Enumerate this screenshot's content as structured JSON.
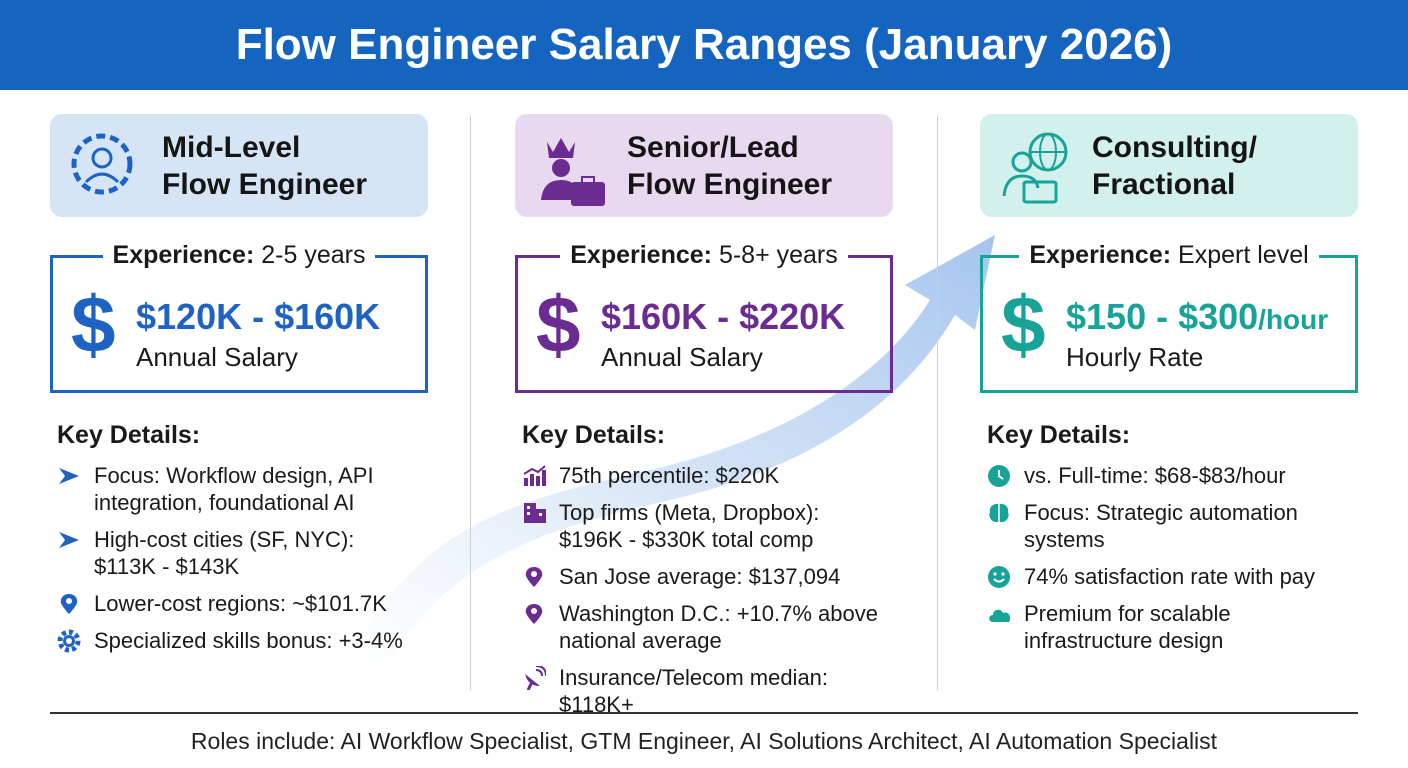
{
  "header": {
    "title": "Flow Engineer Salary Ranges (January 2026)"
  },
  "columns": [
    {
      "title": [
        "Mid-Level",
        "Flow Engineer"
      ],
      "experience_label": "Experience:",
      "experience": "2-5 years",
      "currency_symbol": "$",
      "salary": "$120K - $160K",
      "salary_unit": "Annual Salary",
      "details_heading": "Key Details:",
      "details": [
        [
          "Focus: Workflow design, API",
          "integration, foundational AI"
        ],
        [
          "High-cost cities (SF, NYC):",
          "$113K - $143K"
        ],
        [
          "Lower-cost regions: ~$101.7K"
        ],
        [
          "Specialized skills bonus: +3-4%"
        ]
      ]
    },
    {
      "title": [
        "Senior/Lead",
        "Flow Engineer"
      ],
      "experience_label": "Experience:",
      "experience": "5-8+ years",
      "currency_symbol": "$",
      "salary": "$160K - $220K",
      "salary_unit": "Annual Salary",
      "details_heading": "Key Details:",
      "details": [
        [
          "75th percentile: $220K"
        ],
        [
          "Top firms (Meta, Dropbox):",
          "$196K - $330K total comp"
        ],
        [
          "San Jose average: $137,094"
        ],
        [
          "Washington D.C.: +10.7% above",
          "national average"
        ],
        [
          "Insurance/Telecom median: $118K+"
        ]
      ]
    },
    {
      "title": [
        "Consulting/",
        "Fractional"
      ],
      "experience_label": "Experience:",
      "experience": "Expert level",
      "currency_symbol": "$",
      "salary": "$150 - $300",
      "salary_suffix": "/hour",
      "salary_unit": "Hourly Rate",
      "details_heading": "Key Details:",
      "details": [
        [
          "vs. Full-time: $68-$83/hour"
        ],
        [
          "Focus: Strategic automation",
          "systems"
        ],
        [
          "74% satisfaction rate with pay"
        ],
        [
          "Premium for scalable",
          "infrastructure design"
        ]
      ]
    }
  ],
  "footer": "Roles include: AI Workflow Specialist, GTM Engineer, AI Solutions Architect, AI Automation Specialist"
}
